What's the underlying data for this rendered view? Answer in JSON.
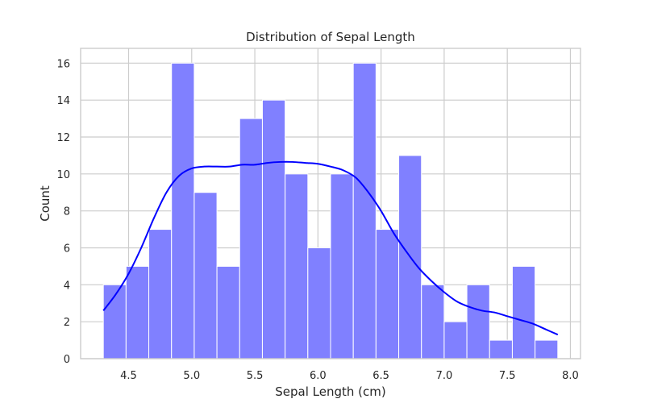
{
  "chart_data": {
    "type": "bar",
    "title": "Distribution of Sepal Length",
    "xlabel": "Sepal Length (cm)",
    "ylabel": "Count",
    "xlim": [
      4.12,
      8.08
    ],
    "ylim": [
      0,
      16.8
    ],
    "xticks": [
      4.5,
      5.0,
      5.5,
      6.0,
      6.5,
      7.0,
      7.5,
      8.0
    ],
    "xtick_labels": [
      "4.5",
      "5.0",
      "5.5",
      "6.0",
      "6.5",
      "7.0",
      "7.5",
      "8.0"
    ],
    "yticks": [
      0,
      2,
      4,
      6,
      8,
      10,
      12,
      14,
      16
    ],
    "ytick_labels": [
      "0",
      "2",
      "4",
      "6",
      "8",
      "10",
      "12",
      "14",
      "16"
    ],
    "grid": true,
    "bar_color": "#8080ff",
    "kde_color": "#0000ff",
    "bins": [
      {
        "x0": 4.3,
        "x1": 4.48,
        "count": 4
      },
      {
        "x0": 4.48,
        "x1": 4.66,
        "count": 5
      },
      {
        "x0": 4.66,
        "x1": 4.84,
        "count": 7
      },
      {
        "x0": 4.84,
        "x1": 5.02,
        "count": 16
      },
      {
        "x0": 5.02,
        "x1": 5.2,
        "count": 9
      },
      {
        "x0": 5.2,
        "x1": 5.38,
        "count": 5
      },
      {
        "x0": 5.38,
        "x1": 5.56,
        "count": 13
      },
      {
        "x0": 5.56,
        "x1": 5.74,
        "count": 14
      },
      {
        "x0": 5.74,
        "x1": 5.92,
        "count": 10
      },
      {
        "x0": 5.92,
        "x1": 6.1,
        "count": 6
      },
      {
        "x0": 6.1,
        "x1": 6.28,
        "count": 10
      },
      {
        "x0": 6.28,
        "x1": 6.46,
        "count": 16
      },
      {
        "x0": 6.46,
        "x1": 6.64,
        "count": 7
      },
      {
        "x0": 6.64,
        "x1": 6.82,
        "count": 11
      },
      {
        "x0": 6.82,
        "x1": 7.0,
        "count": 4
      },
      {
        "x0": 7.0,
        "x1": 7.18,
        "count": 2
      },
      {
        "x0": 7.18,
        "x1": 7.36,
        "count": 4
      },
      {
        "x0": 7.36,
        "x1": 7.54,
        "count": 1
      },
      {
        "x0": 7.54,
        "x1": 7.72,
        "count": 5
      },
      {
        "x0": 7.72,
        "x1": 7.9,
        "count": 1
      }
    ],
    "kde": {
      "x": [
        4.3,
        4.4,
        4.5,
        4.6,
        4.7,
        4.8,
        4.9,
        5.0,
        5.1,
        5.2,
        5.3,
        5.4,
        5.5,
        5.6,
        5.7,
        5.8,
        5.9,
        6.0,
        6.1,
        6.2,
        6.3,
        6.4,
        6.5,
        6.6,
        6.7,
        6.8,
        6.9,
        7.0,
        7.1,
        7.2,
        7.3,
        7.4,
        7.5,
        7.6,
        7.7,
        7.8,
        7.9
      ],
      "y": [
        2.6,
        3.5,
        4.6,
        6.0,
        7.6,
        9.0,
        9.9,
        10.3,
        10.4,
        10.4,
        10.4,
        10.5,
        10.5,
        10.6,
        10.65,
        10.65,
        10.6,
        10.55,
        10.4,
        10.2,
        9.8,
        9.0,
        8.0,
        6.8,
        5.8,
        4.9,
        4.2,
        3.6,
        3.1,
        2.8,
        2.6,
        2.5,
        2.3,
        2.1,
        1.9,
        1.6,
        1.3
      ]
    }
  }
}
